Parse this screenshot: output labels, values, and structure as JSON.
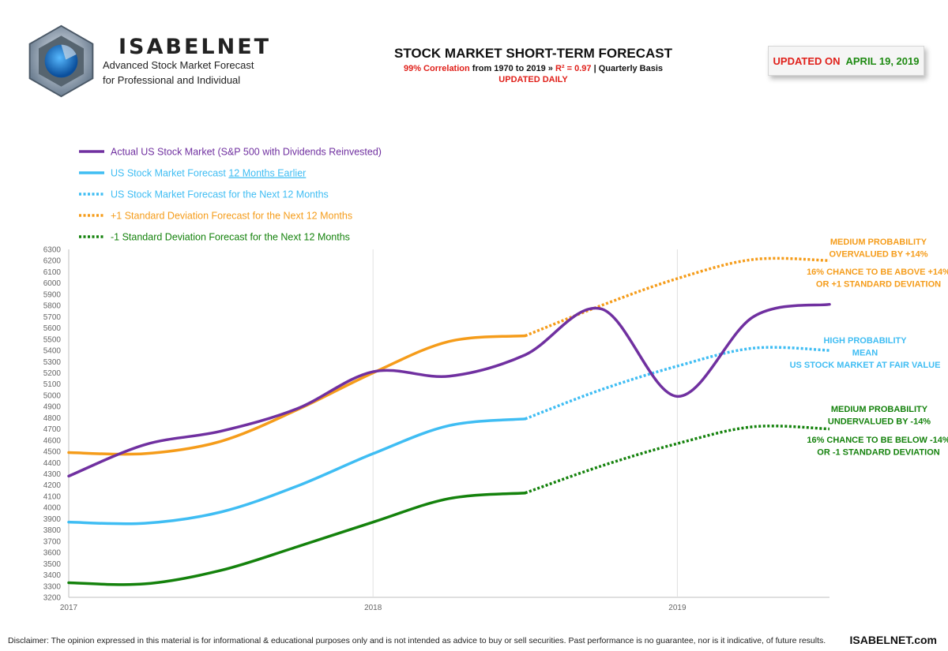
{
  "header": {
    "brand": "ISABELNET",
    "tagline1": "Advanced Stock Market Forecast",
    "tagline2": "for Professional and Individual",
    "title": "STOCK MARKET SHORT-TERM FORECAST",
    "subtitle_red": "99% Correlation",
    "subtitle_mid": " from 1970 to 2019 » ",
    "subtitle_r2": "R² = 0.97",
    "subtitle_end": " | Quarterly Basis",
    "updated_daily": "UPDATED DAILY",
    "updated_label": "UPDATED ON",
    "updated_date": "APRIL 19, 2019"
  },
  "colors": {
    "actual": "#7030a0",
    "forecast": "#3fbdf3",
    "plus_sd": "#f59c1a",
    "minus_sd": "#14820c",
    "grid": "#e0e0e0",
    "axis_text": "#666666"
  },
  "chart_data": {
    "type": "line",
    "title": "STOCK MARKET SHORT-TERM FORECAST",
    "xlabel": "",
    "ylabel": "",
    "x_ticks": [
      "2017",
      "2018",
      "2019"
    ],
    "ylim": [
      3200,
      6300
    ],
    "y_ticks": [
      3200,
      3300,
      3400,
      3500,
      3600,
      3700,
      3800,
      3900,
      4000,
      4100,
      4200,
      4300,
      4400,
      4500,
      4600,
      4700,
      4800,
      4900,
      5000,
      5100,
      5200,
      5300,
      5400,
      5500,
      5600,
      5700,
      5800,
      5900,
      6000,
      6100,
      6200,
      6300
    ],
    "x_range": [
      2017.0,
      2019.5
    ],
    "grid": "vertical lines at year ticks",
    "legend_position": "top-left",
    "series": [
      {
        "key": "actual",
        "name": "Actual US Stock Market (S&P 500 with Dividends Reinvested)",
        "style": "solid",
        "x": [
          2017.0,
          2017.25,
          2017.5,
          2017.75,
          2018.0,
          2018.25,
          2018.5,
          2018.75,
          2019.0,
          2019.25,
          2019.5
        ],
        "values": [
          4280,
          4560,
          4680,
          4880,
          5210,
          5170,
          5360,
          5770,
          4990,
          5700,
          5810
        ]
      },
      {
        "key": "forecast",
        "name": "US Stock Market Forecast 12 Months Earlier",
        "style": "solid",
        "x": [
          2017.0,
          2017.25,
          2017.5,
          2017.75,
          2018.0,
          2018.25,
          2018.5
        ],
        "values": [
          3870,
          3860,
          3960,
          4190,
          4480,
          4730,
          4790
        ]
      },
      {
        "key": "forecast",
        "name": "US Stock Market Forecast for the Next 12 Months",
        "style": "dotted",
        "x": [
          2018.5,
          2018.75,
          2019.0,
          2019.25,
          2019.5
        ],
        "values": [
          4790,
          5050,
          5260,
          5420,
          5400
        ]
      },
      {
        "key": "plus_sd",
        "name": "+1 Standard Deviation Forecast for the Next 12 Months",
        "style": "dotted",
        "x": [
          2018.5,
          2018.75,
          2019.0,
          2019.25,
          2019.5
        ],
        "values": [
          5530,
          5800,
          6040,
          6210,
          6200
        ]
      },
      {
        "key": "minus_sd",
        "name": "-1 Standard Deviation Forecast for the Next 12 Months",
        "style": "dotted",
        "x": [
          2018.5,
          2018.75,
          2019.0,
          2019.25,
          2019.5
        ],
        "values": [
          4130,
          4370,
          4570,
          4720,
          4700
        ]
      },
      {
        "key": "plus_sd",
        "name": "",
        "style": "solid",
        "x": [
          2017.0,
          2017.25,
          2017.5,
          2017.75,
          2018.0,
          2018.25,
          2018.5
        ],
        "values": [
          4490,
          4480,
          4590,
          4870,
          5200,
          5480,
          5530
        ]
      },
      {
        "key": "minus_sd",
        "name": "",
        "style": "solid",
        "x": [
          2017.0,
          2017.25,
          2017.5,
          2017.75,
          2018.0,
          2018.25,
          2018.5
        ],
        "values": [
          3330,
          3320,
          3440,
          3650,
          3870,
          4080,
          4130
        ]
      }
    ],
    "legend": [
      {
        "key": "actual",
        "style": "solid",
        "text": "Actual US Stock Market (S&P 500 with Dividends Reinvested)"
      },
      {
        "key": "forecast",
        "style": "solid",
        "text": "US Stock Market Forecast ",
        "link_text": "12 Months Earlier"
      },
      {
        "key": "forecast",
        "style": "dotted",
        "text": "US Stock Market Forecast for the Next 12 Months"
      },
      {
        "key": "plus_sd",
        "style": "dotted",
        "text": "+1 Standard Deviation Forecast for the Next 12 Months"
      },
      {
        "key": "minus_sd",
        "style": "dotted",
        "text": "-1 Standard Deviation Forecast for the Next 12 Months"
      }
    ],
    "annotations": [
      {
        "key": "plus_sd",
        "lines": [
          "MEDIUM PROBABILITY",
          "OVERVALUED BY +14%"
        ]
      },
      {
        "key": "plus_sd",
        "lines": [
          "16% CHANCE TO BE ABOVE +14%",
          "OR +1 STANDARD DEVIATION"
        ]
      },
      {
        "key": "forecast",
        "lines": [
          "HIGH PROBABILITY",
          "MEAN",
          "US STOCK MARKET AT FAIR VALUE"
        ]
      },
      {
        "key": "minus_sd",
        "lines": [
          "MEDIUM PROBABILITY",
          "UNDERVALUED BY -14%"
        ]
      },
      {
        "key": "minus_sd",
        "lines": [
          "16% CHANCE TO BE BELOW -14%",
          "OR -1 STANDARD DEVIATION"
        ]
      }
    ]
  },
  "footer": {
    "disclaimer": "Disclaimer: The opinion expressed in this material is for informational & educational purposes only and is not intended as advice to buy or sell securities. Past performance is no guarantee, nor is it indicative, of future results.",
    "site": "ISABELNET.com"
  }
}
